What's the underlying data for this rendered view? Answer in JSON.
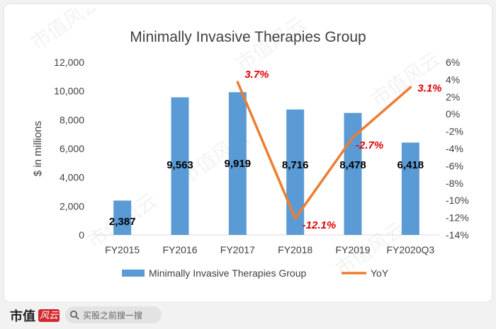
{
  "chart_data": {
    "type": "bar",
    "title": "Minimally Invasive Therapies Group",
    "ylabel": "$ in millions",
    "y2label": "",
    "categories": [
      "FY2015",
      "FY2016",
      "FY2017",
      "FY2018",
      "FY2019",
      "FY2020Q3"
    ],
    "ylim": [
      0,
      12000
    ],
    "y_ticks": [
      0,
      2000,
      4000,
      6000,
      8000,
      10000,
      12000
    ],
    "y_tick_labels": [
      "0",
      "2,000",
      "4,000",
      "6,000",
      "8,000",
      "10,000",
      "12,000"
    ],
    "y2lim": [
      -14,
      6
    ],
    "y2_ticks": [
      6,
      4,
      2,
      0,
      -2,
      -4,
      -6,
      -8,
      -10,
      -12,
      -14
    ],
    "y2_tick_labels": [
      "6%",
      "4%",
      "2%",
      "0%",
      "-2%",
      "-4%",
      "-6%",
      "-8%",
      "-10%",
      "-12%",
      "-14%"
    ],
    "series": [
      {
        "name": "Minimally Invasive Therapies Group",
        "type": "bar",
        "axis": "left",
        "color": "#5b9bd5",
        "values": [
          2387,
          9563,
          9919,
          8716,
          8478,
          6418
        ],
        "labels": [
          "2,387",
          "9,563",
          "9,919",
          "8,716",
          "8,478",
          "6,418"
        ]
      },
      {
        "name": "YoY",
        "type": "line",
        "axis": "right",
        "color": "#ed7d31",
        "values": [
          null,
          null,
          3.7,
          -12.1,
          -2.7,
          3.1
        ],
        "labels": [
          null,
          null,
          "3.7%",
          "-12.1%",
          "-2.7%",
          "3.1%"
        ],
        "label_color": "#e00000"
      }
    ],
    "legend_position": "bottom",
    "grid": false
  },
  "watermark": "市值风云",
  "footer": {
    "brand": "市值",
    "brand_badge": "风云",
    "search_icon": "search-icon",
    "search_text": "买股之前搜一搜"
  }
}
